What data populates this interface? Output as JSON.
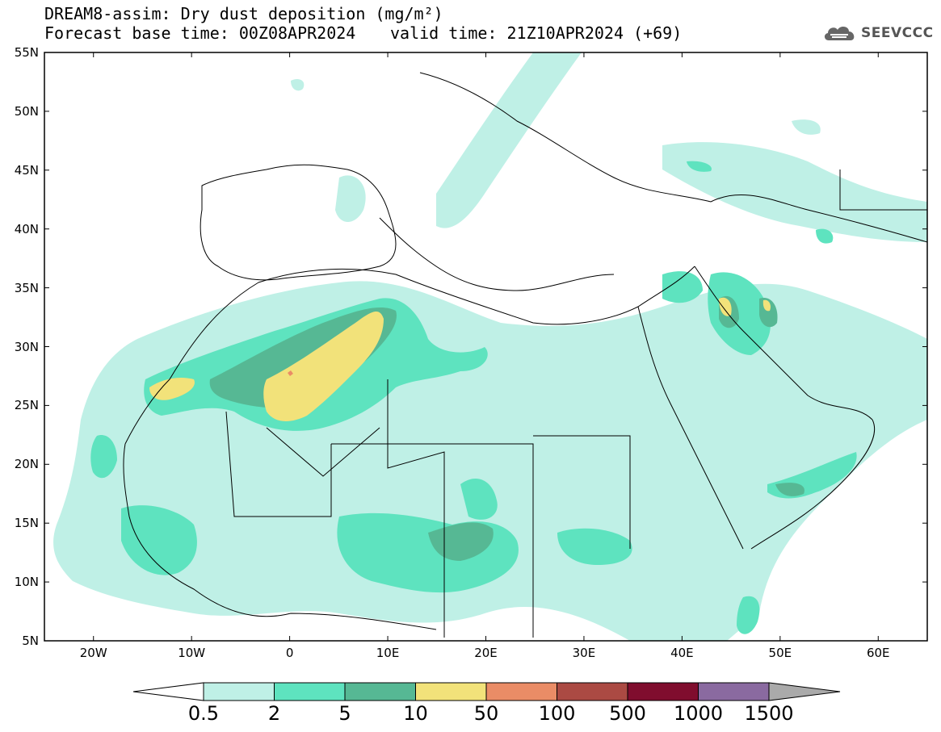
{
  "title": {
    "line1": "DREAM8-assim: Dry dust deposition (mg/m²)",
    "line2_left": "Forecast base time: 00Z08APR2024",
    "line2_right": "valid time: 21Z10APR2024 (+69)"
  },
  "logo": {
    "text": "SEEVCCC",
    "icon": "cloud-icon"
  },
  "map": {
    "lon_range": [
      -25,
      65
    ],
    "lat_range": [
      5,
      55
    ],
    "lat_labels": [
      "55N",
      "50N",
      "45N",
      "40N",
      "35N",
      "30N",
      "25N",
      "20N",
      "15N",
      "10N",
      "5N"
    ],
    "lon_labels": [
      "20W",
      "10W",
      "0",
      "10E",
      "20E",
      "30E",
      "40E",
      "50E",
      "60E"
    ],
    "background": "#ffffff",
    "coastline_color": "#000000"
  },
  "colorbar": {
    "labels": [
      "0.5",
      "2",
      "5",
      "10",
      "50",
      "100",
      "500",
      "1000",
      "1500"
    ],
    "colors": [
      "#bff0e6",
      "#5ee3bf",
      "#56b894",
      "#f2e27a",
      "#ea8c66",
      "#ab4a43",
      "#800d2e",
      "#8a6aa0",
      "#aaaaaa"
    ]
  }
}
